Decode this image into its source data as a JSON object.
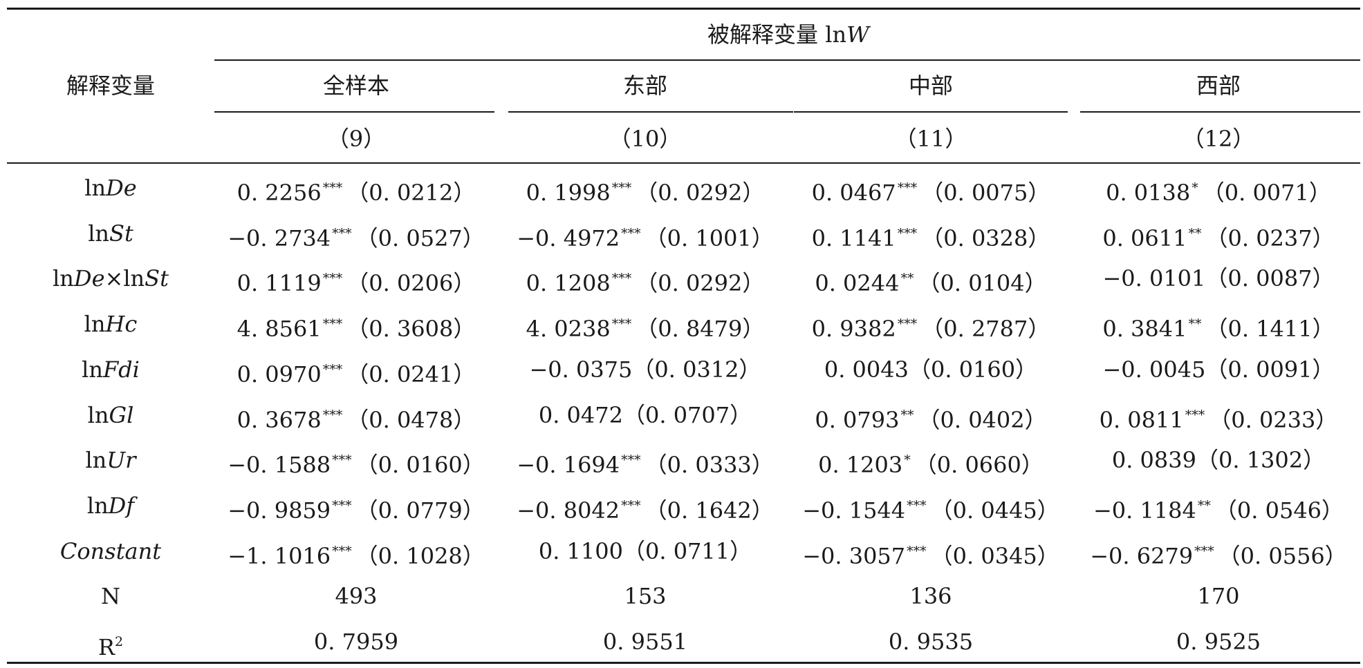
{
  "table": {
    "header": {
      "row_group_label": "解释变量",
      "dependent_prefix": "被解释变量 ln",
      "dependent_var": "W",
      "columns": [
        {
          "group": "全样本",
          "model": "（9）"
        },
        {
          "group": "东部",
          "model": "（10）"
        },
        {
          "group": "中部",
          "model": "（11）"
        },
        {
          "group": "西部",
          "model": "（12）"
        }
      ]
    },
    "rows": [
      {
        "label_parts": [
          {
            "text": "ln",
            "italic": false
          },
          {
            "text": "De",
            "italic": true
          }
        ],
        "cells": [
          {
            "coef": "0. 2256",
            "stars": "***",
            "se": "（0. 0212）"
          },
          {
            "coef": "0. 1998",
            "stars": "***",
            "se": "（0. 0292）"
          },
          {
            "coef": "0. 0467",
            "stars": "***",
            "se": "（0. 0075）"
          },
          {
            "coef": "0. 0138",
            "stars": "*",
            "se": "（0. 0071）"
          }
        ]
      },
      {
        "label_parts": [
          {
            "text": "ln",
            "italic": false
          },
          {
            "text": "St",
            "italic": true
          }
        ],
        "cells": [
          {
            "coef": "−0. 2734",
            "stars": "***",
            "se": "（0. 0527）"
          },
          {
            "coef": "−0. 4972",
            "stars": "***",
            "se": "（0. 1001）"
          },
          {
            "coef": "0. 1141",
            "stars": "***",
            "se": "（0. 0328）"
          },
          {
            "coef": "0. 0611",
            "stars": "**",
            "se": "（0. 0237）"
          }
        ]
      },
      {
        "label_parts": [
          {
            "text": "ln",
            "italic": false
          },
          {
            "text": "De",
            "italic": true
          },
          {
            "text": "×ln",
            "italic": false
          },
          {
            "text": "St",
            "italic": true
          }
        ],
        "cells": [
          {
            "coef": "0. 1119",
            "stars": "***",
            "se": "（0. 0206）"
          },
          {
            "coef": "0. 1208",
            "stars": "***",
            "se": "（0. 0292）"
          },
          {
            "coef": "0. 0244",
            "stars": "**",
            "se": "（0. 0104）"
          },
          {
            "coef": "−0. 0101",
            "stars": "",
            "se": "（0. 0087）"
          }
        ]
      },
      {
        "label_parts": [
          {
            "text": "ln",
            "italic": false
          },
          {
            "text": "Hc",
            "italic": true
          }
        ],
        "cells": [
          {
            "coef": "4. 8561",
            "stars": "***",
            "se": "（0. 3608）"
          },
          {
            "coef": "4. 0238",
            "stars": "***",
            "se": "（0. 8479）"
          },
          {
            "coef": "0. 9382",
            "stars": "***",
            "se": "（0. 2787）"
          },
          {
            "coef": "0. 3841",
            "stars": "**",
            "se": "（0. 1411）"
          }
        ]
      },
      {
        "label_parts": [
          {
            "text": "ln",
            "italic": false
          },
          {
            "text": "Fdi",
            "italic": true
          }
        ],
        "cells": [
          {
            "coef": "0. 0970",
            "stars": "***",
            "se": "（0. 0241）"
          },
          {
            "coef": "−0. 0375",
            "stars": "",
            "se": "（0. 0312）"
          },
          {
            "coef": "0. 0043",
            "stars": "",
            "se": "（0. 0160）"
          },
          {
            "coef": "−0. 0045",
            "stars": "",
            "se": "（0. 0091）"
          }
        ]
      },
      {
        "label_parts": [
          {
            "text": "ln",
            "italic": false
          },
          {
            "text": "Gl",
            "italic": true
          }
        ],
        "cells": [
          {
            "coef": "0. 3678",
            "stars": "***",
            "se": "（0. 0478）"
          },
          {
            "coef": "0. 0472",
            "stars": "",
            "se": "（0. 0707）"
          },
          {
            "coef": "0. 0793",
            "stars": "**",
            "se": "（0. 0402）"
          },
          {
            "coef": "0. 0811",
            "stars": "***",
            "se": "（0. 0233）"
          }
        ]
      },
      {
        "label_parts": [
          {
            "text": "ln",
            "italic": false
          },
          {
            "text": "Ur",
            "italic": true
          }
        ],
        "cells": [
          {
            "coef": "−0. 1588",
            "stars": "***",
            "se": "（0. 0160）"
          },
          {
            "coef": "−0. 1694",
            "stars": "***",
            "se": "（0. 0333）"
          },
          {
            "coef": "0. 1203",
            "stars": "*",
            "se": "（0. 0660）"
          },
          {
            "coef": "0. 0839",
            "stars": "",
            "se": "（0. 1302）"
          }
        ]
      },
      {
        "label_parts": [
          {
            "text": "ln",
            "italic": false
          },
          {
            "text": "Df",
            "italic": true
          }
        ],
        "cells": [
          {
            "coef": "−0. 9859",
            "stars": "***",
            "se": "（0. 0779）"
          },
          {
            "coef": "−0. 8042",
            "stars": "***",
            "se": "（0. 1642）"
          },
          {
            "coef": "−0. 1544",
            "stars": "***",
            "se": "（0. 0445）"
          },
          {
            "coef": "−0. 1184",
            "stars": "**",
            "se": "（0. 0546）"
          }
        ]
      },
      {
        "label_parts": [
          {
            "text": "Constant",
            "italic": true
          }
        ],
        "cells": [
          {
            "coef": "−1. 1016",
            "stars": "***",
            "se": "（0. 1028）"
          },
          {
            "coef": "0. 1100",
            "stars": "",
            "se": "（0. 0711）"
          },
          {
            "coef": "−0. 3057",
            "stars": "***",
            "se": "（0. 0345）"
          },
          {
            "coef": "−0. 6279",
            "stars": "***",
            "se": "（0. 0556）"
          }
        ]
      }
    ],
    "n_row": {
      "label": "N",
      "values": [
        "493",
        "153",
        "136",
        "170"
      ]
    },
    "r2_row": {
      "label": "R",
      "label_sup": "2",
      "values": [
        "0. 7959",
        "0. 9551",
        "0. 9535",
        "0. 9525"
      ]
    }
  }
}
